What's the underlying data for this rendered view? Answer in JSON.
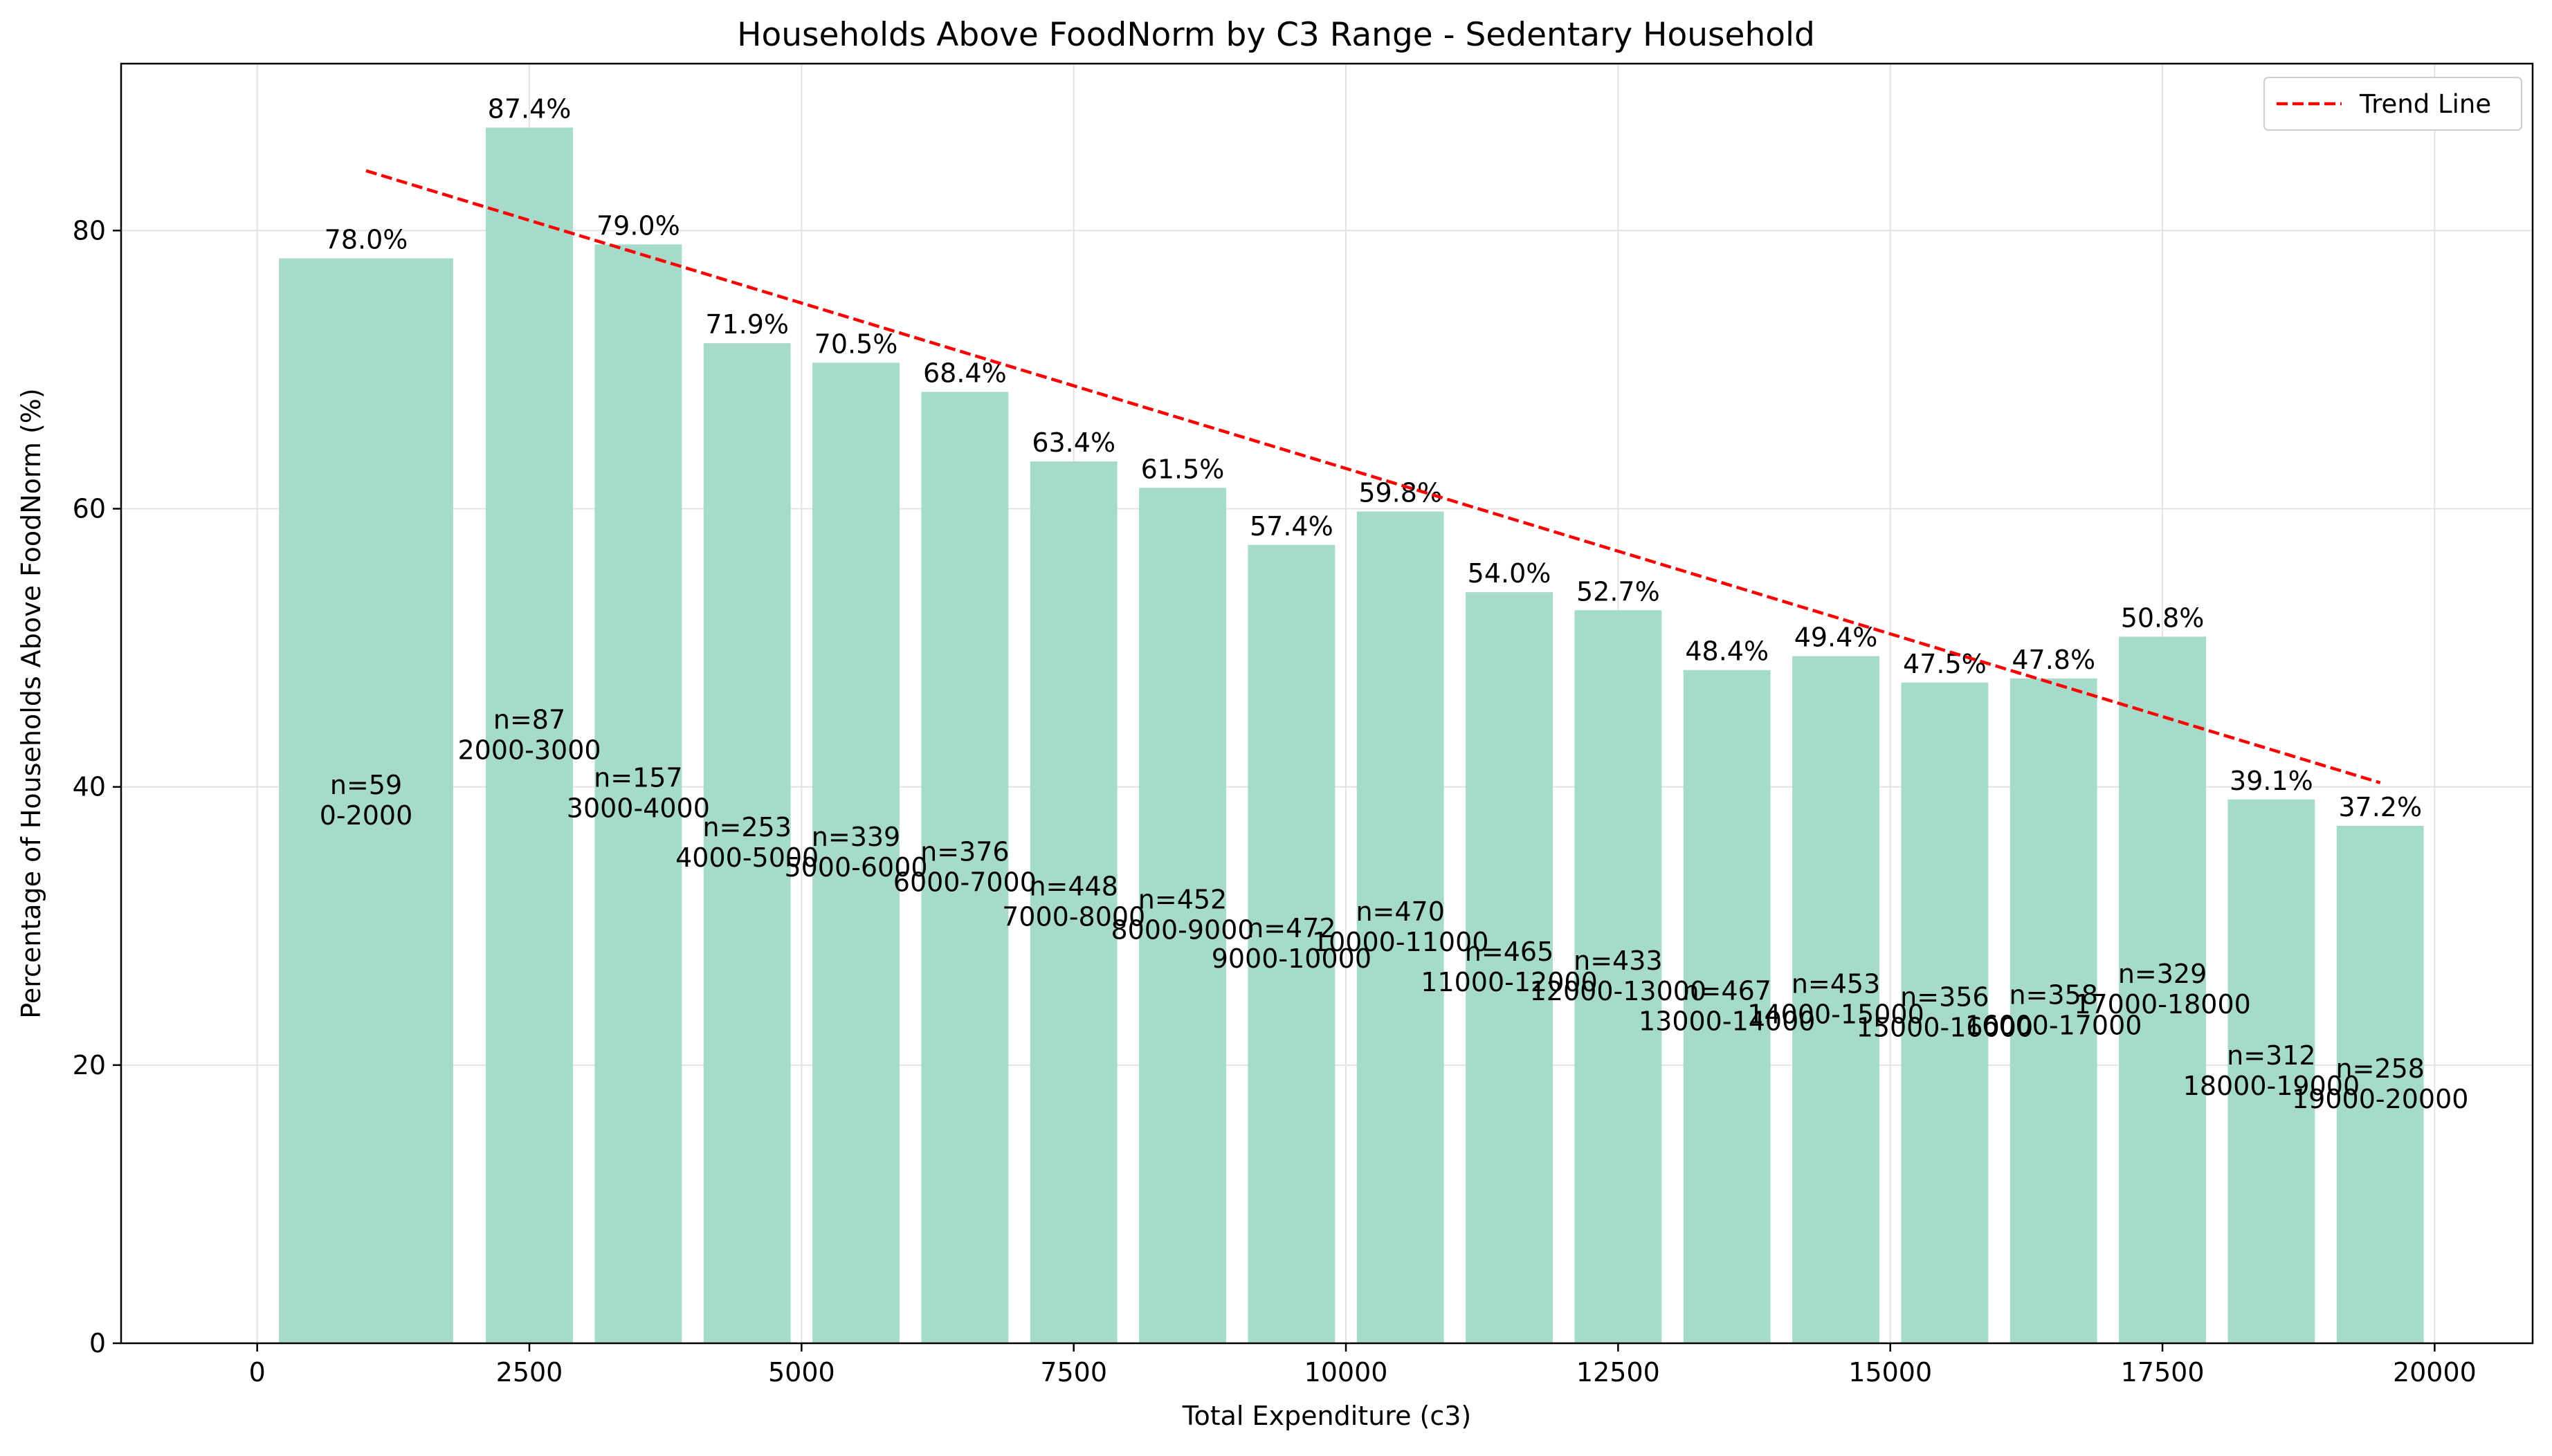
{
  "chart_data": {
    "type": "bar",
    "title": "Households Above FoodNorm by C3 Range - Sedentary Household",
    "xlabel": "Total Expenditure (c3)",
    "ylabel": "Percentage of Households Above FoodNorm (%)",
    "xlim": [
      -1250,
      20900
    ],
    "ylim": [
      0,
      92
    ],
    "xticks": [
      0,
      2500,
      5000,
      7500,
      10000,
      12500,
      15000,
      17500,
      20000
    ],
    "yticks": [
      0,
      20,
      40,
      60,
      80
    ],
    "grid": true,
    "legend_position": "top-right",
    "colors": {
      "bar": "#a6dacb",
      "trend": "#ff0000"
    },
    "bars": [
      {
        "range": "0-2000",
        "x_start": 200,
        "x_end": 1800,
        "value": 78.0,
        "value_label": "78.0%",
        "n_label": "n=59"
      },
      {
        "range": "2000-3000",
        "x_start": 2100,
        "x_end": 2900,
        "value": 87.4,
        "value_label": "87.4%",
        "n_label": "n=87"
      },
      {
        "range": "3000-4000",
        "x_start": 3100,
        "x_end": 3900,
        "value": 79.0,
        "value_label": "79.0%",
        "n_label": "n=157"
      },
      {
        "range": "4000-5000",
        "x_start": 4100,
        "x_end": 4900,
        "value": 71.9,
        "value_label": "71.9%",
        "n_label": "n=253"
      },
      {
        "range": "5000-6000",
        "x_start": 5100,
        "x_end": 5900,
        "value": 70.5,
        "value_label": "70.5%",
        "n_label": "n=339"
      },
      {
        "range": "6000-7000",
        "x_start": 6100,
        "x_end": 6900,
        "value": 68.4,
        "value_label": "68.4%",
        "n_label": "n=376"
      },
      {
        "range": "7000-8000",
        "x_start": 7100,
        "x_end": 7900,
        "value": 63.4,
        "value_label": "63.4%",
        "n_label": "n=448"
      },
      {
        "range": "8000-9000",
        "x_start": 8100,
        "x_end": 8900,
        "value": 61.5,
        "value_label": "61.5%",
        "n_label": "n=452"
      },
      {
        "range": "9000-10000",
        "x_start": 9100,
        "x_end": 9900,
        "value": 57.4,
        "value_label": "57.4%",
        "n_label": "n=472"
      },
      {
        "range": "10000-11000",
        "x_start": 10100,
        "x_end": 10900,
        "value": 59.8,
        "value_label": "59.8%",
        "n_label": "n=470"
      },
      {
        "range": "11000-12000",
        "x_start": 11100,
        "x_end": 11900,
        "value": 54.0,
        "value_label": "54.0%",
        "n_label": "n=465"
      },
      {
        "range": "12000-13000",
        "x_start": 12100,
        "x_end": 12900,
        "value": 52.7,
        "value_label": "52.7%",
        "n_label": "n=433"
      },
      {
        "range": "13000-14000",
        "x_start": 13100,
        "x_end": 13900,
        "value": 48.4,
        "value_label": "48.4%",
        "n_label": "n=467"
      },
      {
        "range": "14000-15000",
        "x_start": 14100,
        "x_end": 14900,
        "value": 49.4,
        "value_label": "49.4%",
        "n_label": "n=453"
      },
      {
        "range": "15000-16000",
        "x_start": 15100,
        "x_end": 15900,
        "value": 47.5,
        "value_label": "47.5%",
        "n_label": "n=356"
      },
      {
        "range": "16000-17000",
        "x_start": 16100,
        "x_end": 16900,
        "value": 47.8,
        "value_label": "47.8%",
        "n_label": "n=358"
      },
      {
        "range": "17000-18000",
        "x_start": 17100,
        "x_end": 17900,
        "value": 50.8,
        "value_label": "50.8%",
        "n_label": "n=329"
      },
      {
        "range": "18000-19000",
        "x_start": 18100,
        "x_end": 18900,
        "value": 39.1,
        "value_label": "39.1%",
        "n_label": "n=312"
      },
      {
        "range": "19000-20000",
        "x_start": 19100,
        "x_end": 19900,
        "value": 37.2,
        "value_label": "37.2%",
        "n_label": "n=258"
      }
    ],
    "trend": {
      "name": "Trend Line",
      "x": [
        1000,
        19500
      ],
      "y": [
        84.3,
        40.3
      ]
    }
  }
}
